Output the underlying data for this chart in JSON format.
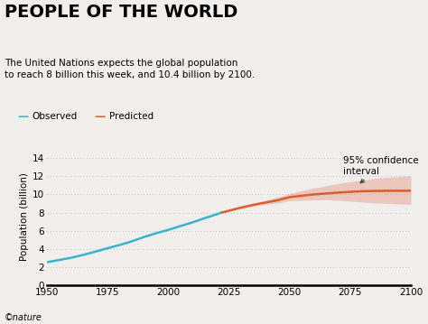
{
  "title": "PEOPLE OF THE WORLD",
  "subtitle": "The United Nations expects the global population\nto reach 8 billion this week, and 10.4 billion by 2100.",
  "ylabel": "Population (billion)",
  "xlim": [
    1950,
    2100
  ],
  "ylim": [
    0,
    15
  ],
  "yticks": [
    0,
    2,
    4,
    6,
    8,
    10,
    12,
    14
  ],
  "xticks": [
    1950,
    1975,
    2000,
    2025,
    2050,
    2075,
    2100
  ],
  "bg_color": "#f0efee",
  "observed_color": "#3ab5c6",
  "predicted_color": "#d95f2b",
  "ci_color": "#e8a090",
  "ci_alpha": 0.5,
  "annotation_text": "95% confidence\ninterval",
  "footnote": "©nature",
  "observed_years": [
    1950,
    1955,
    1960,
    1965,
    1970,
    1975,
    1980,
    1985,
    1990,
    1995,
    2000,
    2005,
    2010,
    2015,
    2022
  ],
  "observed_pop": [
    2.53,
    2.77,
    3.02,
    3.34,
    3.7,
    4.07,
    4.43,
    4.83,
    5.31,
    5.72,
    6.09,
    6.51,
    6.92,
    7.38,
    8.0
  ],
  "predicted_years": [
    2022,
    2025,
    2030,
    2035,
    2040,
    2045,
    2050,
    2055,
    2060,
    2065,
    2070,
    2075,
    2080,
    2085,
    2090,
    2095,
    2100
  ],
  "predicted_pop": [
    8.0,
    8.2,
    8.55,
    8.85,
    9.1,
    9.35,
    9.7,
    9.85,
    10.0,
    10.1,
    10.2,
    10.28,
    10.35,
    10.38,
    10.4,
    10.4,
    10.4
  ],
  "ci_upper": [
    8.0,
    8.25,
    8.65,
    9.0,
    9.35,
    9.7,
    10.1,
    10.4,
    10.7,
    10.95,
    11.2,
    11.4,
    11.6,
    11.75,
    11.88,
    11.95,
    12.05
  ],
  "ci_lower": [
    8.0,
    8.15,
    8.45,
    8.7,
    8.9,
    9.05,
    9.3,
    9.35,
    9.4,
    9.4,
    9.35,
    9.25,
    9.15,
    9.05,
    9.0,
    8.95,
    8.9
  ],
  "legend_observed": "Observed",
  "legend_predicted": "Predicted"
}
